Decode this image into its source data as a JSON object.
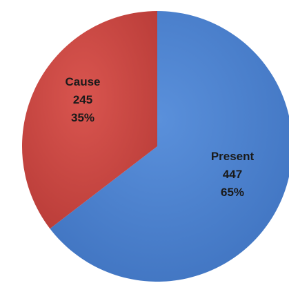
{
  "chart_data": {
    "type": "pie",
    "title": "",
    "slices": [
      {
        "name": "Present",
        "value": 447,
        "percent": "65%",
        "color": "#4a7fcc"
      },
      {
        "name": "Cause",
        "value": 245,
        "percent": "35%",
        "color": "#cc4a46"
      }
    ],
    "legend": "none",
    "data_labels": "inside"
  }
}
